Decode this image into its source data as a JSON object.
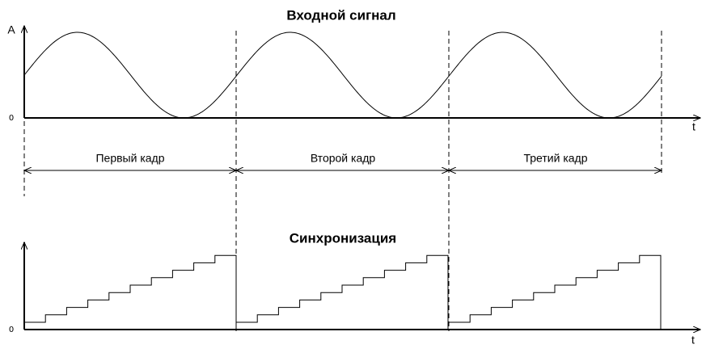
{
  "input_signal": {
    "title": "Входной сигнал",
    "y_label": "A",
    "zero_label": "0",
    "x_label": "t"
  },
  "frames": [
    "Первый кадр",
    "Второй кадр",
    "Третий кадр"
  ],
  "sync_signal": {
    "title": "Синхронизация",
    "zero_label": "0",
    "x_label": "t"
  }
}
